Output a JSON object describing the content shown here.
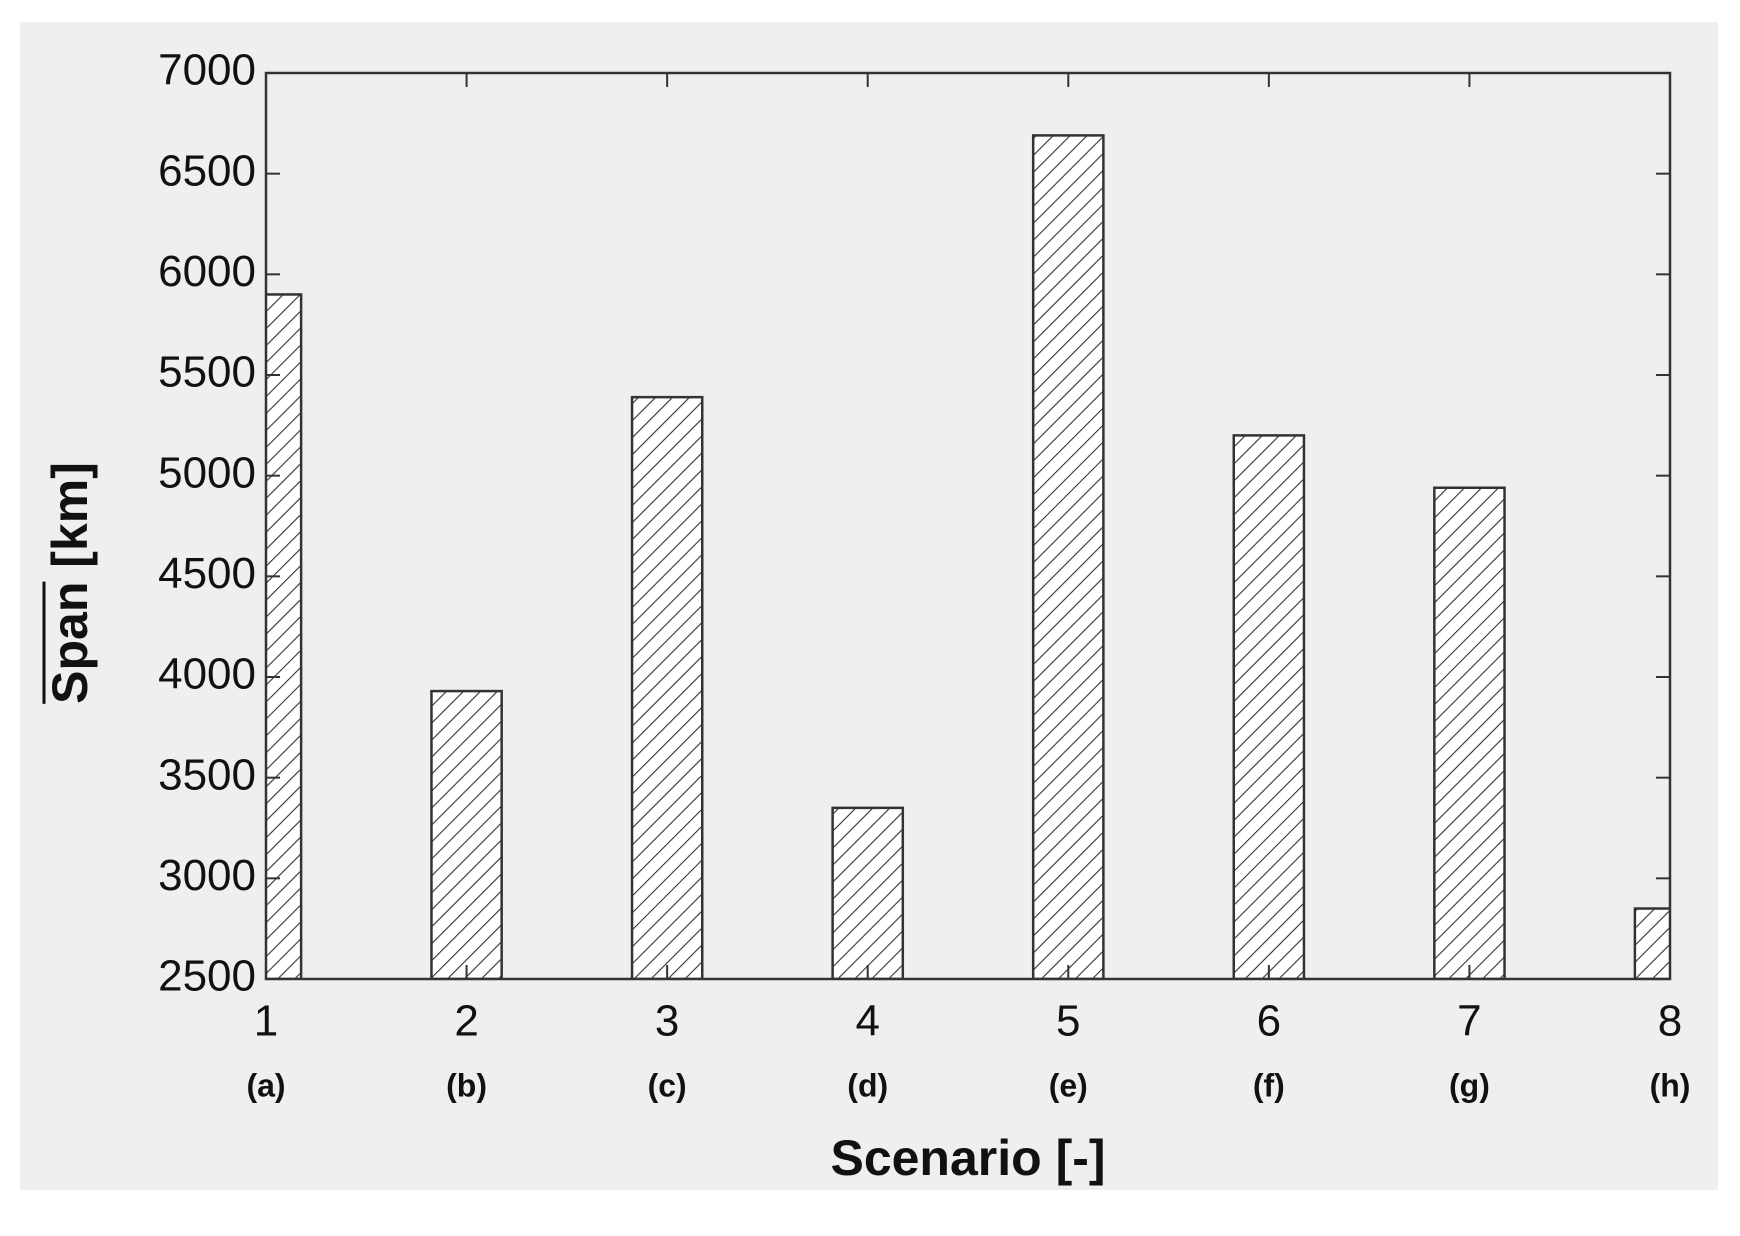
{
  "chart_data": {
    "type": "bar",
    "xlabel": "Scenario  [-]",
    "ylabel": "Span [km]",
    "x": [
      1,
      2,
      3,
      4,
      5,
      6,
      7,
      8
    ],
    "sublabels": [
      "(a)",
      "(b)",
      "(c)",
      "(d)",
      "(e)",
      "(f)",
      "(g)",
      "(h)"
    ],
    "values": [
      5900,
      3930,
      5390,
      3350,
      6690,
      5200,
      4940,
      2850
    ],
    "xlim": [
      1,
      8
    ],
    "xticks": [
      1,
      2,
      3,
      4,
      5,
      6,
      7,
      8
    ],
    "ylim": [
      2500,
      7000
    ],
    "yticks": [
      2500,
      3000,
      3500,
      4000,
      4500,
      5000,
      5500,
      6000,
      6500,
      7000
    ],
    "color": "#333333"
  }
}
